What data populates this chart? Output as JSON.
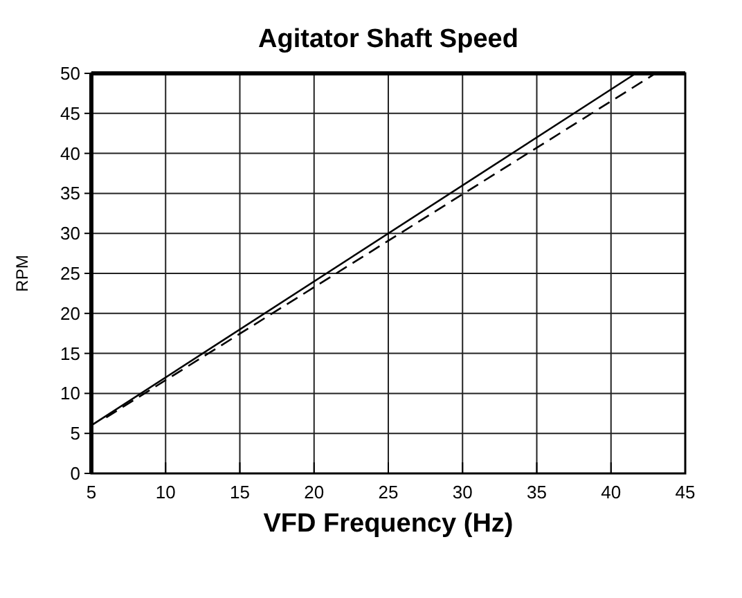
{
  "chart_data": {
    "type": "line",
    "title": "Agitator Shaft Speed",
    "xlabel": "VFD Frequency (Hz)",
    "ylabel": "RPM",
    "xlim": [
      5,
      45
    ],
    "ylim": [
      0,
      50
    ],
    "xticks": [
      5,
      10,
      15,
      20,
      25,
      30,
      35,
      40,
      45
    ],
    "yticks": [
      0,
      5,
      10,
      15,
      20,
      25,
      30,
      35,
      40,
      45,
      50
    ],
    "grid": true,
    "series": [
      {
        "color": "#000000",
        "x": [
          5,
          41.67
        ],
        "values": [
          6,
          50
        ],
        "line_style": "solid"
      },
      {
        "color": "#000000",
        "x": [
          6,
          43
        ],
        "values": [
          7,
          50
        ],
        "line_style": "dashed"
      }
    ]
  }
}
